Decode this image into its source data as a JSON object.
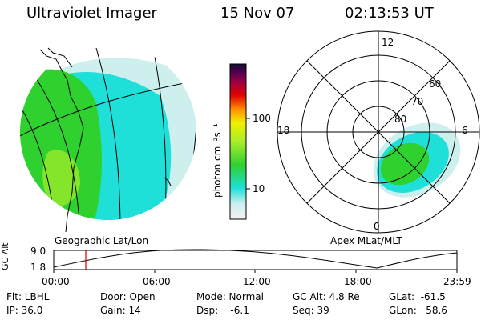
{
  "header": {
    "instrument": "Ultraviolet Imager",
    "date": "15 Nov 07",
    "time": "02:13:53 UT"
  },
  "left_panel": {
    "label": "Geographic Lat/Lon"
  },
  "colorbar": {
    "unit_label": "photon cm⁻²s⁻¹",
    "ticks": [
      "100",
      "10"
    ],
    "scale": "log"
  },
  "right_panel": {
    "label": "Apex MLat/MLT",
    "mlt_labels": [
      "12",
      "18",
      "6",
      "0"
    ],
    "mlat_labels": [
      "60",
      "70",
      "80"
    ]
  },
  "altitude_strip": {
    "y_label": "GC Alt",
    "y_ticks": [
      "9.0",
      "1.8"
    ],
    "x_ticks": [
      "00:00",
      "06:00",
      "12:00",
      "18:00",
      "23:59"
    ],
    "current_time_marker": "02:13:53"
  },
  "status": {
    "flt": "Flt: LBHL",
    "ip": "IP: 36.0",
    "door": "Door: Open",
    "gain": "Gain: 14",
    "mode": "Mode: Normal",
    "dsp": "Dsp:    -6.1",
    "gc_alt": "GC Alt: 4.8 Re",
    "seq": "Seq: 39",
    "glat": "GLat:  -61.5",
    "glon": "GLon:   58.6"
  },
  "colors": {
    "green": "#2fd12f",
    "lime": "#a8ee2a",
    "cyan": "#1fe0d8",
    "lightcyan": "#cdefee",
    "marker": "#d00000"
  }
}
